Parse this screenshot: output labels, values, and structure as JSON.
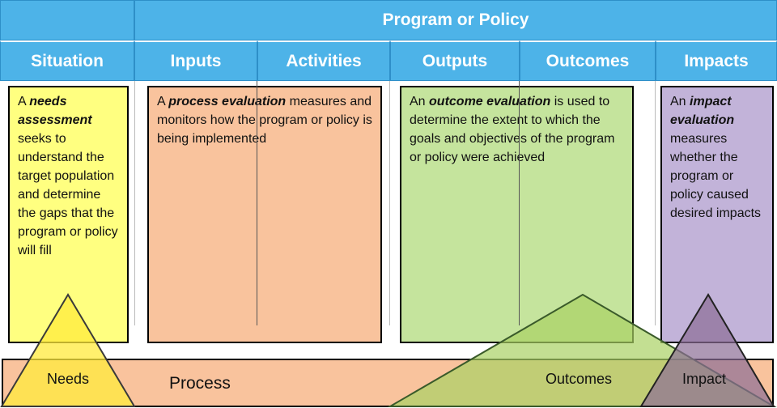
{
  "header": {
    "program_title": "Program or Policy",
    "columns": [
      "Situation",
      "Inputs",
      "Activities",
      "Outputs",
      "Outcomes",
      "Impacts"
    ]
  },
  "boxes": {
    "needs": {
      "lead": "A ",
      "term": "needs assessment",
      "text": " seeks to understand the target population and determine the gaps that the program or policy will fill"
    },
    "process": {
      "lead": "A ",
      "term": "process evaluation",
      "text": " measures and monitors how the program or policy is being implemented"
    },
    "outcome": {
      "lead": "An ",
      "term": "outcome evaluation",
      "text": " is used to determine the extent to which the goals and objectives of the program or policy were achieved"
    },
    "impact": {
      "lead": "An ",
      "term": "impact evaluation",
      "text": " measures whether the program or policy caused desired impacts"
    }
  },
  "bottom": {
    "needs": "Needs",
    "process": "Process",
    "outcomes": "Outcomes",
    "impact": "Impact"
  },
  "colors": {
    "header_blue": "#4db3e8",
    "needs_yellow": "#ffff80",
    "process_orange": "#f9c39d",
    "outcome_green": "#c5e49d",
    "impact_purple": "#c2b3d9"
  }
}
